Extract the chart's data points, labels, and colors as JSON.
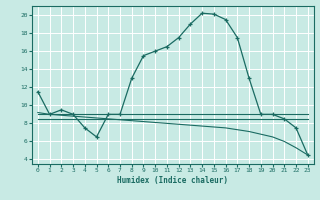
{
  "xlabel": "Humidex (Indice chaleur)",
  "xlim": [
    -0.5,
    23.5
  ],
  "ylim": [
    3.5,
    21.0
  ],
  "xticks": [
    0,
    1,
    2,
    3,
    4,
    5,
    6,
    7,
    8,
    9,
    10,
    11,
    12,
    13,
    14,
    15,
    16,
    17,
    18,
    19,
    20,
    21,
    22,
    23
  ],
  "yticks": [
    4,
    6,
    8,
    10,
    12,
    14,
    16,
    18,
    20
  ],
  "bg_color": "#c8eae4",
  "line_color": "#1a6b62",
  "grid_color": "#ffffff",
  "line1_x": [
    0,
    1,
    2,
    3,
    4,
    5,
    6,
    7,
    8,
    9,
    10,
    11,
    12,
    13,
    14,
    15,
    16,
    17,
    18,
    19,
    20,
    21,
    22,
    23
  ],
  "line1_y": [
    11.5,
    9.0,
    9.5,
    9.0,
    7.5,
    6.5,
    9.0,
    9.0,
    13.0,
    15.5,
    16.0,
    16.5,
    17.5,
    19.0,
    20.2,
    20.1,
    19.5,
    17.5,
    13.0,
    9.0,
    9.0,
    8.5,
    7.5,
    4.5
  ],
  "line2_x": [
    0,
    1,
    2,
    3,
    4,
    5,
    6,
    7,
    8,
    9,
    10,
    11,
    12,
    13,
    14,
    15,
    16,
    17,
    18,
    19,
    20,
    21,
    22,
    23
  ],
  "line2_y": [
    9.0,
    9.0,
    9.0,
    9.0,
    9.0,
    9.0,
    9.0,
    9.0,
    9.0,
    9.0,
    9.0,
    9.0,
    9.0,
    9.0,
    9.0,
    9.0,
    9.0,
    9.0,
    9.0,
    9.0,
    9.0,
    9.0,
    9.0,
    9.0
  ],
  "line3_x": [
    0,
    1,
    2,
    3,
    4,
    5,
    6,
    7,
    8,
    9,
    10,
    11,
    12,
    13,
    14,
    15,
    16,
    17,
    18,
    19,
    20,
    21,
    22,
    23
  ],
  "line3_y": [
    8.5,
    8.5,
    8.5,
    8.5,
    8.5,
    8.5,
    8.5,
    8.5,
    8.5,
    8.5,
    8.5,
    8.5,
    8.5,
    8.5,
    8.5,
    8.5,
    8.5,
    8.5,
    8.5,
    8.5,
    8.5,
    8.5,
    8.5,
    8.5
  ],
  "line4_x": [
    0,
    1,
    2,
    3,
    4,
    5,
    6,
    7,
    8,
    9,
    10,
    11,
    12,
    13,
    14,
    15,
    16,
    17,
    18,
    19,
    20,
    21,
    22,
    23
  ],
  "line4_y": [
    9.2,
    9.0,
    8.9,
    8.8,
    8.7,
    8.6,
    8.5,
    8.4,
    8.3,
    8.2,
    8.1,
    8.0,
    7.9,
    7.8,
    7.7,
    7.6,
    7.5,
    7.3,
    7.1,
    6.8,
    6.5,
    6.0,
    5.3,
    4.5
  ]
}
